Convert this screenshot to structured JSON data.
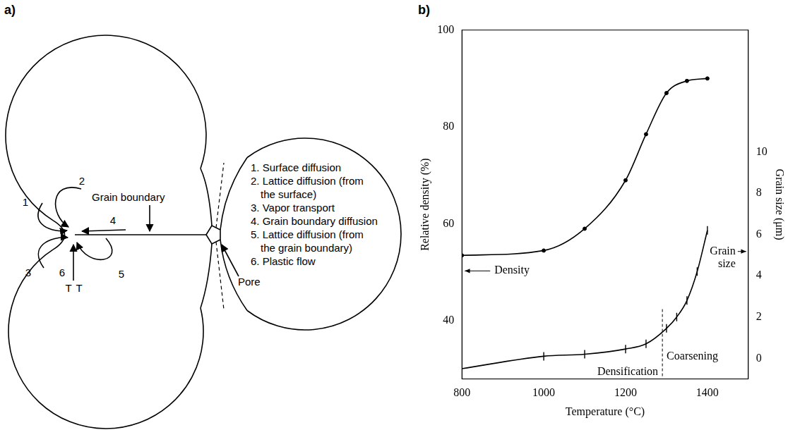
{
  "panel_labels": [
    "a)",
    "b)"
  ],
  "diagram": {
    "grain_boundary_label": "Grain boundary",
    "pore_label": "Pore",
    "stress_labels": [
      "T",
      "T"
    ],
    "mechanisms": [
      {
        "number": 1,
        "text": "1. Surface diffusion"
      },
      {
        "number": 2,
        "text": "2. Lattice diffusion (from the surface)"
      },
      {
        "number": 3,
        "text": "3. Vapor transport"
      },
      {
        "number": 4,
        "text": "4. Grain boundary diffusion"
      },
      {
        "number": 5,
        "text": "5. Lattice diffusion (from the grain boundary)"
      },
      {
        "number": 6,
        "text": "6. Plastic flow"
      }
    ]
  },
  "chart_data": {
    "type": "line",
    "x_label": "Temperature (°C)",
    "y_label": "Relative density (%)",
    "y2_label": "Grain size (μm)",
    "xlim": [
      800,
      1500
    ],
    "xticks": [
      800,
      1000,
      1200,
      1400
    ],
    "ylim": [
      28,
      100
    ],
    "yticks": [
      40,
      60,
      80,
      100
    ],
    "y2lim": [
      -1,
      15.9
    ],
    "y2ticks": [
      0,
      2,
      4,
      6,
      8,
      10
    ],
    "grid": false,
    "legend": false,
    "series": [
      {
        "name": "Density",
        "color": "#000000",
        "axis": "y",
        "marker": "circle",
        "line_style": "solid",
        "x": [
          800,
          1000,
          1100,
          1200,
          1250,
          1300,
          1350,
          1400
        ],
        "values": [
          53.5,
          54.5,
          59,
          69,
          78.5,
          87,
          89.5,
          90
        ]
      },
      {
        "name": "Grain size",
        "color": "#000000",
        "axis": "y2",
        "marker": "tick",
        "line_style": "solid",
        "x": [
          800,
          1000,
          1100,
          1200,
          1250,
          1300,
          1325,
          1350,
          1375,
          1400
        ],
        "values": [
          -0.5,
          0.1,
          0.2,
          0.45,
          0.7,
          1.45,
          2,
          2.8,
          4.2,
          6.2
        ]
      }
    ],
    "regions": [
      "Densification",
      "Coarsening"
    ],
    "region_boundary": 1290
  }
}
